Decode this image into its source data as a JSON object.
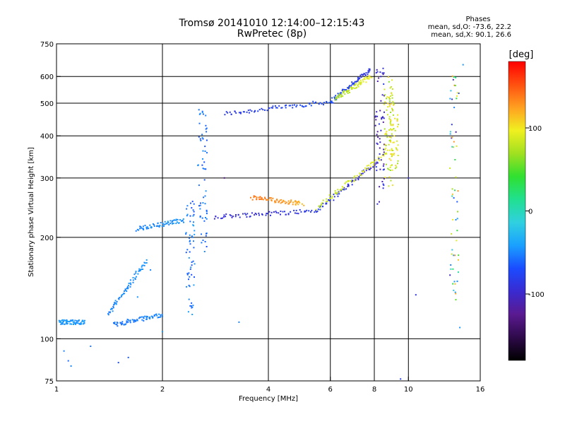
{
  "header": {
    "title_line1": "Tromsø 20141010 12:14:00–12:15:43",
    "title_line2": "RwPretec (8p)"
  },
  "phases": {
    "title": "Phases",
    "line_o": "mean, sd,O: -73.6, 22.2",
    "line_x": "mean, sd,X:  90.1, 26.6"
  },
  "colorbar": {
    "label": "[deg]",
    "ticks": [
      {
        "value": 100,
        "label": "100"
      },
      {
        "value": 0,
        "label": "0"
      },
      {
        "value": -100,
        "label": "-100"
      }
    ],
    "range": [
      -180,
      180
    ],
    "colors": [
      "#000000",
      "#2e0a4a",
      "#5a1a90",
      "#3a2ad0",
      "#1a4cff",
      "#1aa0ff",
      "#30d0e0",
      "#20e090",
      "#30e030",
      "#a0e020",
      "#f0f020",
      "#ffa020",
      "#ff5010",
      "#ff0000"
    ]
  },
  "chart_data": {
    "type": "scatter",
    "xlabel": "Frequency [MHz]",
    "ylabel": "Stationary phase Virtual Height [km]",
    "x_scale": "log",
    "y_scale": "log",
    "xlim": [
      1,
      16
    ],
    "ylim": [
      75,
      750
    ],
    "x_ticks": [
      {
        "value": 1,
        "label": "1"
      },
      {
        "value": 2,
        "label": "2"
      },
      {
        "value": 4,
        "label": "4"
      },
      {
        "value": 6,
        "label": "6"
      },
      {
        "value": 8,
        "label": "8"
      },
      {
        "value": 10,
        "label": "10"
      },
      {
        "value": 16,
        "label": "16"
      }
    ],
    "y_ticks": [
      {
        "value": 75,
        "label": "75"
      },
      {
        "value": 100,
        "label": "100"
      },
      {
        "value": 200,
        "label": "200"
      },
      {
        "value": 300,
        "label": "300"
      },
      {
        "value": 400,
        "label": "400"
      },
      {
        "value": 500,
        "label": "500"
      },
      {
        "value": 600,
        "label": "600"
      },
      {
        "value": 750,
        "label": "750"
      }
    ],
    "x_gridlines": [
      2,
      4,
      6,
      8,
      10
    ],
    "y_gridlines": [
      100,
      200,
      300,
      400,
      500,
      600
    ],
    "traces": [
      {
        "x_start": 3.0,
        "x_end": 6.0,
        "h_start": 465,
        "h_end": 505,
        "phase_start": -85,
        "phase_end": -70
      },
      {
        "x_start": 6.0,
        "x_end": 7.8,
        "h_start": 505,
        "h_end": 630,
        "phase_start": -70,
        "phase_end": -90
      },
      {
        "x_start": 6.2,
        "x_end": 7.8,
        "h_start": 515,
        "h_end": 600,
        "phase_start": 70,
        "phase_end": 95
      },
      {
        "x_start": 2.8,
        "x_end": 5.5,
        "h_start": 230,
        "h_end": 240,
        "phase_start": -95,
        "phase_end": -85
      },
      {
        "x_start": 5.5,
        "x_end": 8.3,
        "h_start": 240,
        "h_end": 340,
        "phase_start": -80,
        "phase_end": -100
      },
      {
        "x_start": 3.6,
        "x_end": 5.0,
        "h_start": 262,
        "h_end": 252,
        "phase_start": 140,
        "phase_end": 120
      },
      {
        "x_start": 5.5,
        "x_end": 8.8,
        "h_start": 245,
        "h_end": 360,
        "phase_start": 80,
        "phase_end": 95
      },
      {
        "x_start": 1.7,
        "x_end": 2.3,
        "h_start": 212,
        "h_end": 225,
        "phase_start": -50,
        "phase_end": -45
      },
      {
        "x_start": 1.45,
        "x_end": 2.0,
        "h_start": 110,
        "h_end": 118,
        "phase_start": -55,
        "phase_end": -50
      },
      {
        "x_start": 1.4,
        "x_end": 1.8,
        "h_start": 118,
        "h_end": 170,
        "phase_start": -50,
        "phase_end": -45
      },
      {
        "x_start": 1.02,
        "x_end": 1.2,
        "h_start": 112,
        "h_end": 112,
        "phase_start": -45,
        "phase_end": -45
      }
    ],
    "columns": [
      {
        "x": 2.6,
        "h_min": 180,
        "h_max": 480,
        "phase_min": -70,
        "phase_max": -45
      },
      {
        "x": 2.4,
        "h_min": 115,
        "h_max": 260,
        "phase_min": -70,
        "phase_max": -40
      },
      {
        "x": 8.3,
        "h_min": 250,
        "h_max": 640,
        "phase_min": -120,
        "phase_max": -80
      },
      {
        "x": 8.8,
        "h_min": 280,
        "h_max": 610,
        "phase_min": 60,
        "phase_max": 110
      },
      {
        "x": 9.1,
        "h_min": 320,
        "h_max": 560,
        "phase_min": 70,
        "phase_max": 110
      },
      {
        "x": 13.5,
        "h_min": 130,
        "h_max": 640,
        "phase_min": -130,
        "phase_max": 140
      }
    ],
    "isolated_points": [
      {
        "x": 1.05,
        "h": 92,
        "phase": -50
      },
      {
        "x": 1.1,
        "h": 83,
        "phase": -50
      },
      {
        "x": 1.08,
        "h": 86,
        "phase": -60
      },
      {
        "x": 1.25,
        "h": 95,
        "phase": -55
      },
      {
        "x": 1.5,
        "h": 85,
        "phase": -70
      },
      {
        "x": 1.6,
        "h": 88,
        "phase": -65
      },
      {
        "x": 1.7,
        "h": 133,
        "phase": -45
      },
      {
        "x": 1.85,
        "h": 160,
        "phase": -50
      },
      {
        "x": 2.0,
        "h": 105,
        "phase": -45
      },
      {
        "x": 3.3,
        "h": 112,
        "phase": -50
      },
      {
        "x": 3.0,
        "h": 300,
        "phase": -130
      },
      {
        "x": 10.0,
        "h": 300,
        "phase": -90
      },
      {
        "x": 10.5,
        "h": 135,
        "phase": -90
      },
      {
        "x": 9.5,
        "h": 76,
        "phase": -80
      },
      {
        "x": 14.0,
        "h": 108,
        "phase": -45
      },
      {
        "x": 14.3,
        "h": 650,
        "phase": -45
      }
    ]
  }
}
